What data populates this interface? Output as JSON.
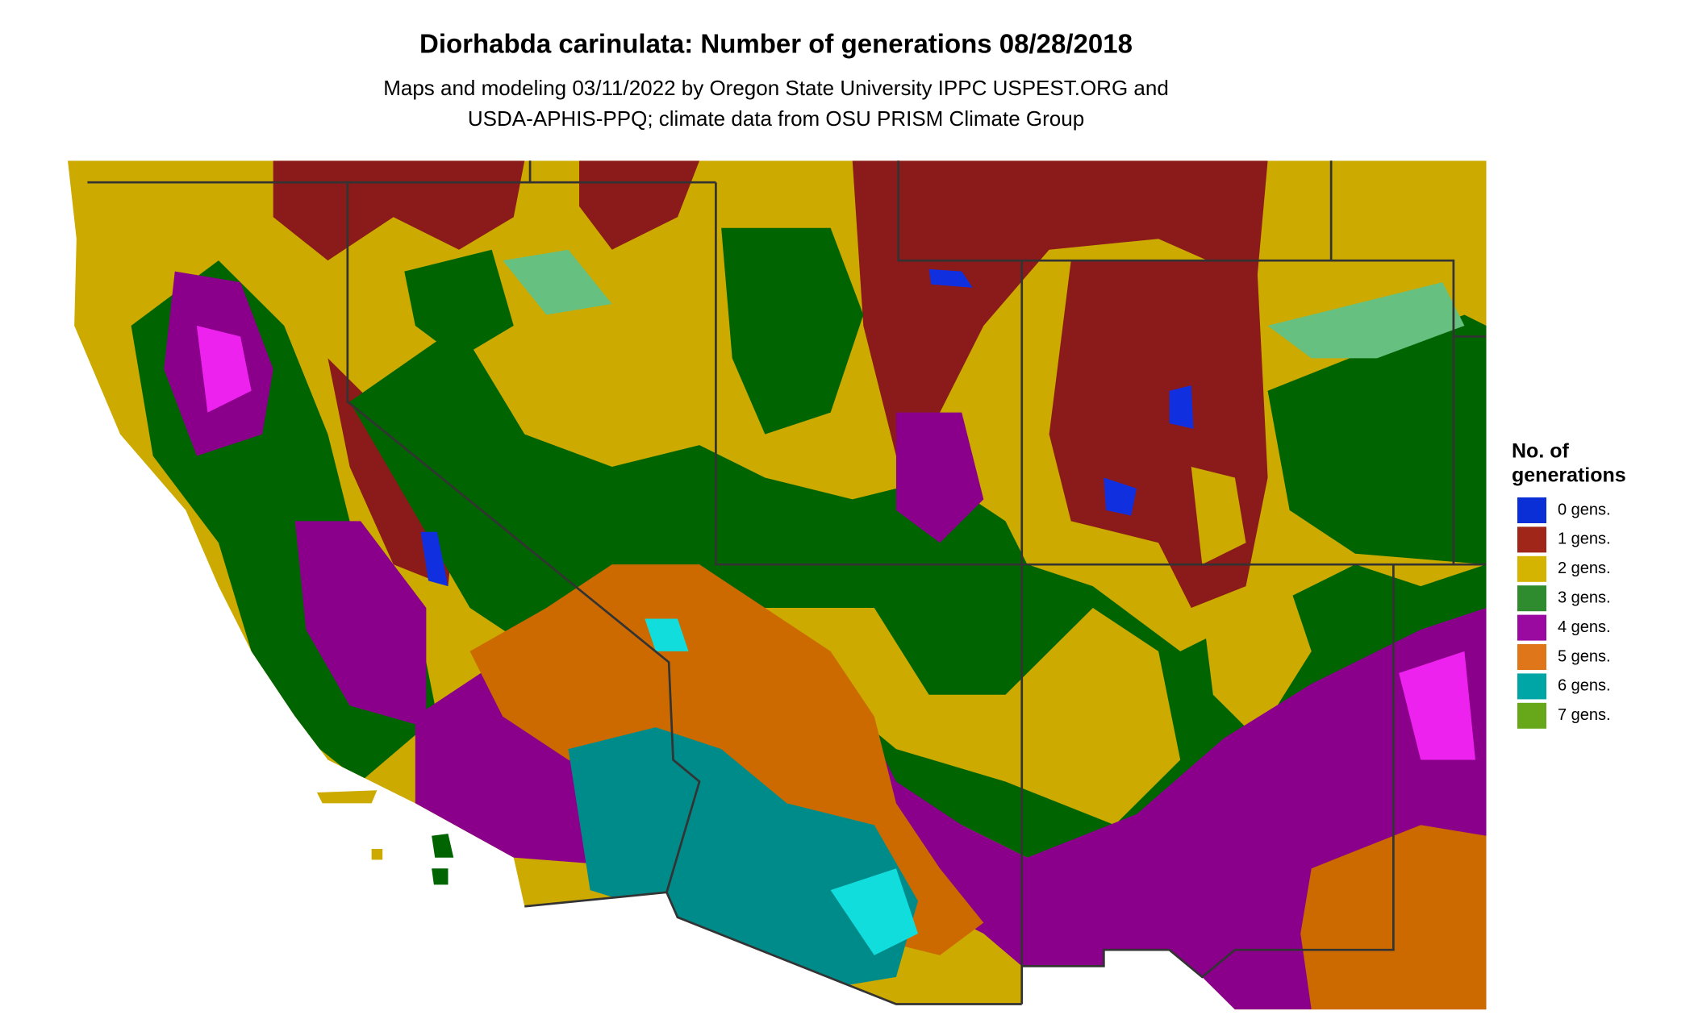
{
  "title": "Diorhabda carinulata: Number of generations 08/28/2018",
  "subtitle": [
    "Maps and modeling 03/11/2022 by Oregon State University IPPC USPEST.ORG and",
    "USDA-APHIS-PPQ; climate data from OSU PRISM Climate Group"
  ],
  "legend": {
    "title": [
      "No. of",
      "generations"
    ],
    "items": [
      {
        "label": "0 gens.",
        "color": "#0a2fd6"
      },
      {
        "label": "1 gens.",
        "color": "#a0261a"
      },
      {
        "label": "2 gens.",
        "color": "#d4b400"
      },
      {
        "label": "3 gens.",
        "color": "#2e8b2e"
      },
      {
        "label": "4 gens.",
        "color": "#9b0aa0"
      },
      {
        "label": "5 gens.",
        "color": "#e0761a"
      },
      {
        "label": "6 gens.",
        "color": "#00a6a6"
      },
      {
        "label": "7 gens.",
        "color": "#66a81a"
      }
    ]
  }
}
